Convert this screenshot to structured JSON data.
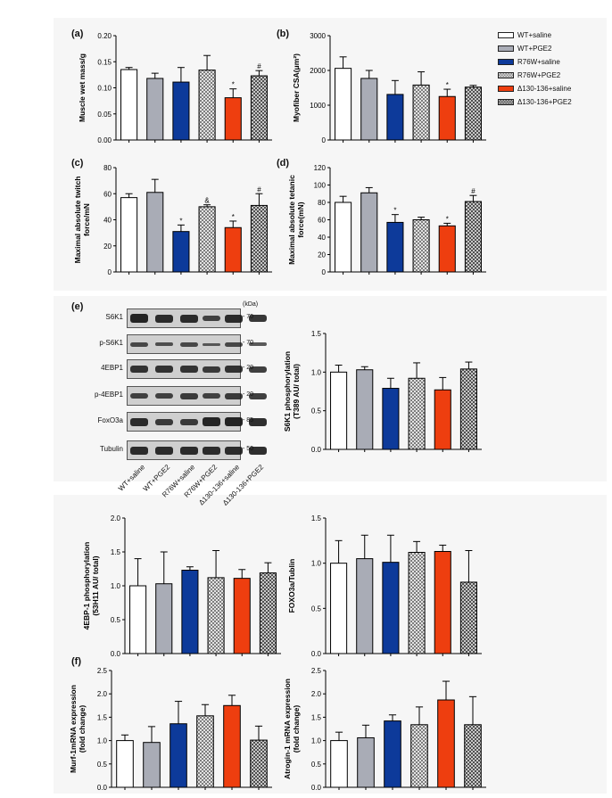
{
  "groups": [
    "WT+saline",
    "WT+PGE2",
    "R76W+saline",
    "R76W+PGE2",
    "Δ130-136+saline",
    "Δ130-136+PGE2"
  ],
  "colors": {
    "WT+saline": "#ffffff",
    "WT+PGE2": "#a9acb6",
    "R76W+saline": "#0d3a9a",
    "R76W+PGE2": "#9a9a9a",
    "Δ130-136+saline": "#ee3e0f",
    "Δ130-136+PGE2": "#7a7a7a"
  },
  "patterns": {
    "R76W+PGE2": "check",
    "Δ130-136+PGE2": "check"
  },
  "panel_labels": {
    "a": "(a)",
    "b": "(b)",
    "c": "(c)",
    "d": "(d)",
    "e": "(e)",
    "f": "(f)"
  },
  "blot": {
    "kda": "(kDa)",
    "rows": [
      {
        "label": "S6K1",
        "mw": "70"
      },
      {
        "label": "p-S6K1",
        "mw": "70"
      },
      {
        "label": "4EBP1",
        "mw": "20"
      },
      {
        "label": "p-4EBP1",
        "mw": "20"
      },
      {
        "label": "FoxO3a",
        "mw": "85"
      },
      {
        "label": "Tubulin",
        "mw": "50"
      }
    ],
    "lanes": [
      "WT+saline",
      "WT+PGE2",
      "R76W+saline",
      "R76W+PGE2",
      "Δ130-136+saline",
      "Δ130-136+PGE2"
    ]
  },
  "chart_data": [
    {
      "id": "a",
      "type": "bar",
      "ylabel": "Muscle wet mass/g",
      "ylim": [
        0,
        0.2
      ],
      "yticks": [
        "0.00",
        "0.05",
        "0.10",
        "0.15",
        "0.20"
      ],
      "yticks_v": [
        0,
        0.05,
        0.1,
        0.15,
        0.2
      ],
      "values": [
        0.135,
        0.118,
        0.111,
        0.134,
        0.081,
        0.123
      ],
      "errors": [
        0.004,
        0.01,
        0.028,
        0.028,
        0.017,
        0.01
      ],
      "marks": [
        "",
        "",
        "",
        "",
        "*",
        "#"
      ]
    },
    {
      "id": "b",
      "type": "bar",
      "ylabel": "Myofiber CSA(μm²)",
      "ylim": [
        0,
        3000
      ],
      "yticks": [
        "0",
        "1000",
        "2000",
        "3000"
      ],
      "yticks_v": [
        0,
        1000,
        2000,
        3000
      ],
      "values": [
        2060,
        1770,
        1310,
        1580,
        1250,
        1520
      ],
      "errors": [
        330,
        230,
        400,
        380,
        210,
        50
      ],
      "marks": [
        "",
        "",
        "",
        "",
        "*",
        ""
      ]
    },
    {
      "id": "c",
      "type": "bar",
      "ylabel": "Maximal absolute twitch\nforce/mN",
      "ylim": [
        0,
        80
      ],
      "yticks": [
        "0",
        "20",
        "40",
        "60",
        "80"
      ],
      "yticks_v": [
        0,
        20,
        40,
        60,
        80
      ],
      "values": [
        57,
        61,
        31,
        50,
        34,
        51
      ],
      "errors": [
        3,
        10,
        5,
        1.5,
        5,
        9
      ],
      "marks": [
        "",
        "",
        "*",
        "&",
        "*",
        "#"
      ]
    },
    {
      "id": "d",
      "type": "bar",
      "ylabel": "Maximal absolute tetanic\nforce(mN)",
      "ylim": [
        0,
        120
      ],
      "yticks": [
        "0",
        "20",
        "40",
        "60",
        "80",
        "100",
        "120"
      ],
      "yticks_v": [
        0,
        20,
        40,
        60,
        80,
        100,
        120
      ],
      "values": [
        80,
        91,
        57,
        60,
        53,
        81
      ],
      "errors": [
        7,
        6,
        9,
        3,
        3,
        7
      ],
      "marks": [
        "",
        "",
        "*",
        "",
        "*",
        "#"
      ]
    },
    {
      "id": "e1",
      "type": "bar",
      "ylabel": "S6K1 phosphorylation\n(T389 AU/ total)",
      "ylim": [
        0,
        1.5
      ],
      "yticks": [
        "0.0",
        "0.5",
        "1.0",
        "1.5"
      ],
      "yticks_v": [
        0,
        0.5,
        1,
        1.5
      ],
      "values": [
        1.0,
        1.03,
        0.79,
        0.92,
        0.77,
        1.04
      ],
      "errors": [
        0.09,
        0.04,
        0.13,
        0.2,
        0.16,
        0.09
      ],
      "marks": [
        "",
        "",
        "",
        "",
        "",
        ""
      ]
    },
    {
      "id": "e2",
      "type": "bar",
      "ylabel": "4EBP-1 phosphorylation\n(53H11 AU/ total)",
      "ylim": [
        0,
        2.0
      ],
      "yticks": [
        "0.0",
        "0.5",
        "1.0",
        "1.5",
        "2.0"
      ],
      "yticks_v": [
        0,
        0.5,
        1,
        1.5,
        2
      ],
      "values": [
        1.0,
        1.03,
        1.23,
        1.12,
        1.11,
        1.19
      ],
      "errors": [
        0.4,
        0.47,
        0.05,
        0.4,
        0.13,
        0.15
      ],
      "marks": [
        "",
        "",
        "",
        "",
        "",
        ""
      ]
    },
    {
      "id": "e3",
      "type": "bar",
      "ylabel": "FOXO3a/Tublin",
      "ylim": [
        0,
        1.5
      ],
      "yticks": [
        "0.0",
        "0.5",
        "1.0",
        "1.5"
      ],
      "yticks_v": [
        0,
        0.5,
        1,
        1.5
      ],
      "values": [
        1.0,
        1.05,
        1.01,
        1.12,
        1.13,
        0.79
      ],
      "errors": [
        0.25,
        0.26,
        0.3,
        0.12,
        0.07,
        0.35
      ],
      "marks": [
        "",
        "",
        "",
        "",
        "",
        ""
      ]
    },
    {
      "id": "f1",
      "type": "bar",
      "ylabel": "Murf-1mRNA expression\n(fold change)",
      "ylim": [
        0,
        2.5
      ],
      "yticks": [
        "0.0",
        "0.5",
        "1.0",
        "1.5",
        "2.0",
        "2.5"
      ],
      "yticks_v": [
        0,
        0.5,
        1,
        1.5,
        2,
        2.5
      ],
      "values": [
        1.0,
        0.96,
        1.36,
        1.53,
        1.75,
        1.01
      ],
      "errors": [
        0.12,
        0.34,
        0.48,
        0.24,
        0.22,
        0.3
      ],
      "marks": [
        "",
        "",
        "",
        "",
        "",
        ""
      ]
    },
    {
      "id": "f2",
      "type": "bar",
      "ylabel": "Atrogin-1 mRNA expression\n(fold change)",
      "ylim": [
        0,
        2.5
      ],
      "yticks": [
        "0.0",
        "0.5",
        "1.0",
        "1.5",
        "2.0",
        "2.5"
      ],
      "yticks_v": [
        0,
        0.5,
        1,
        1.5,
        2,
        2.5
      ],
      "values": [
        1.0,
        1.06,
        1.42,
        1.34,
        1.87,
        1.34
      ],
      "errors": [
        0.18,
        0.27,
        0.13,
        0.38,
        0.4,
        0.6
      ],
      "marks": [
        "",
        "",
        "",
        "",
        "",
        ""
      ]
    }
  ]
}
